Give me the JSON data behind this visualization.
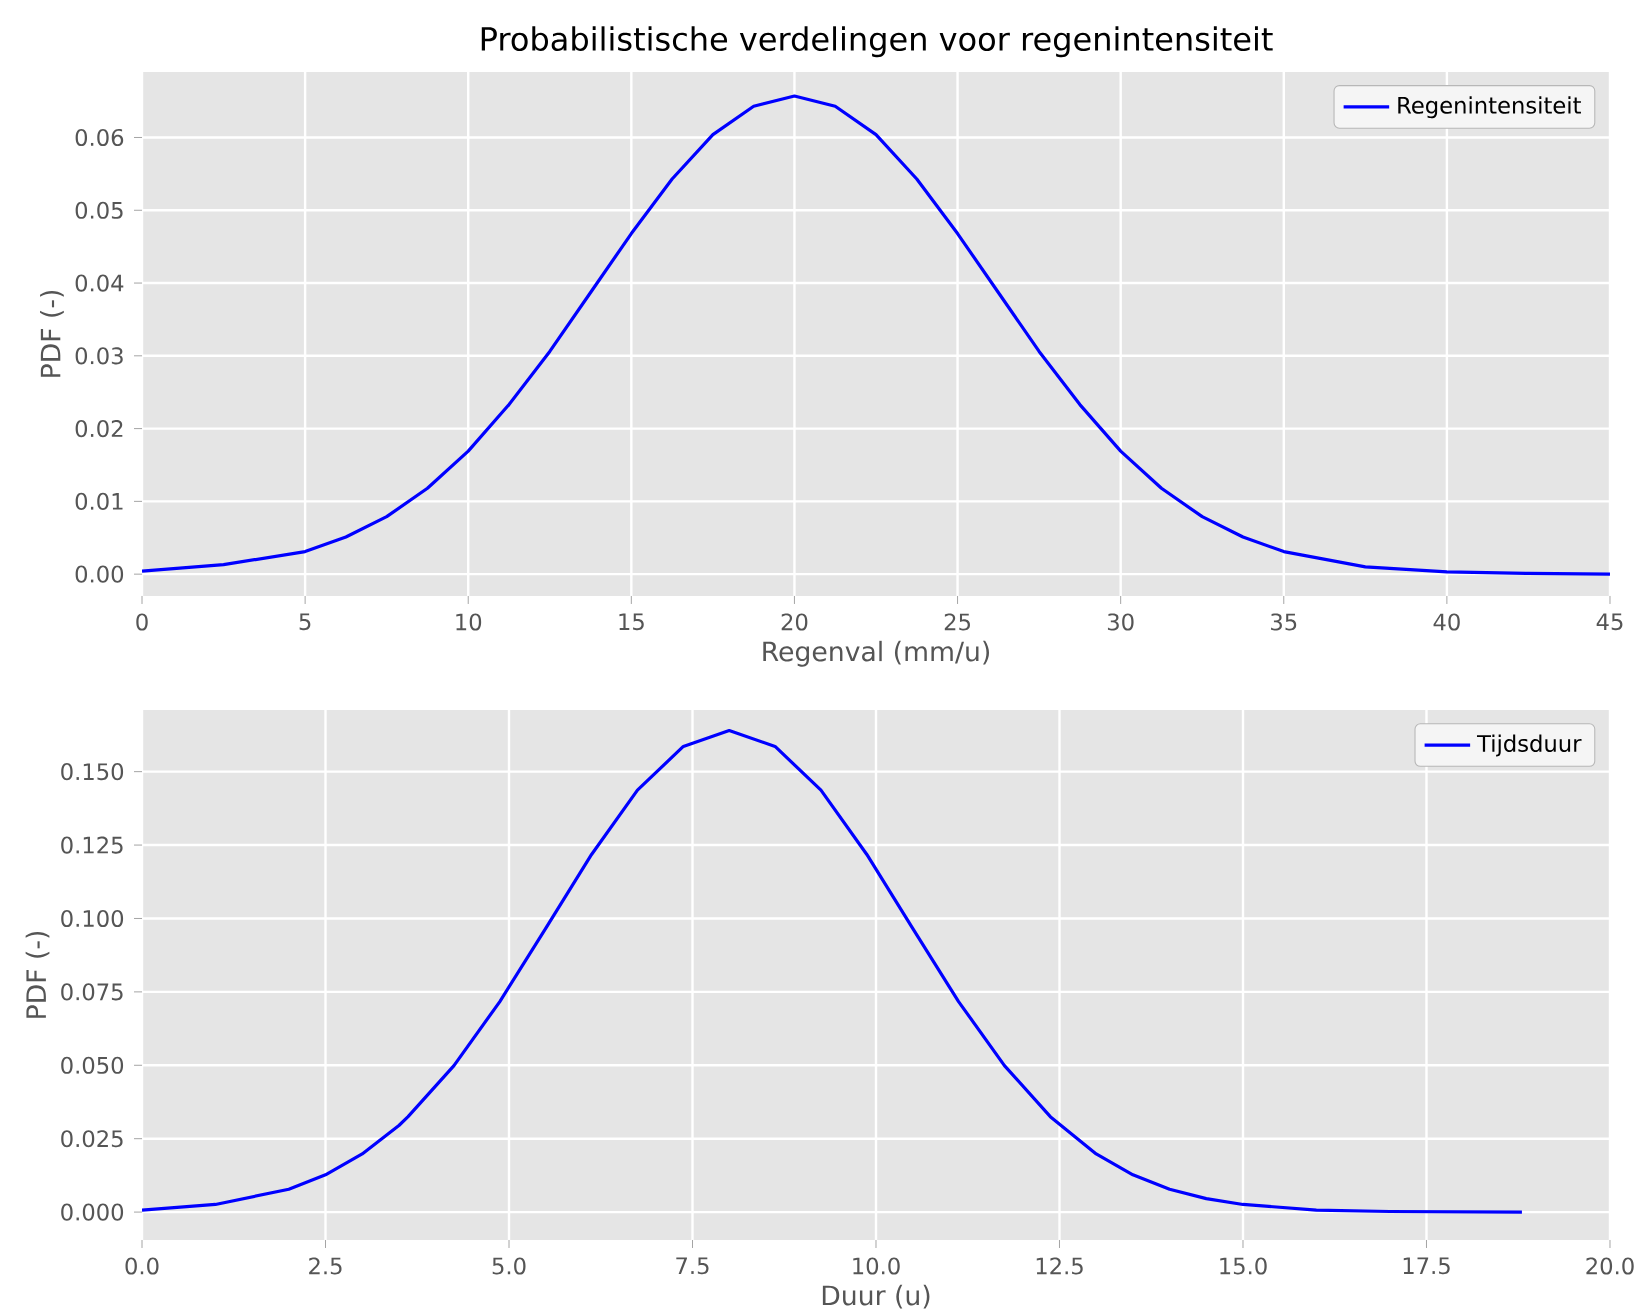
{
  "chart_data": [
    {
      "type": "line",
      "title": "Probabilistische verdelingen voor regenintensiteit",
      "xlabel": "Regenval (mm/u)",
      "ylabel": "PDF (-)",
      "x": [
        0,
        2.5,
        5,
        6.25,
        7.5,
        8.75,
        10,
        11.25,
        12.5,
        13.75,
        15,
        16.25,
        17.5,
        18.75,
        20,
        21.25,
        22.5,
        23.75,
        25,
        26.25,
        27.5,
        28.75,
        30,
        31.25,
        32.5,
        33.75,
        35,
        37.5,
        40,
        42.5,
        45
      ],
      "series": [
        {
          "name": "Regenintensiteit",
          "color": "#0000ff",
          "values": [
            0.0004,
            0.0013,
            0.0031,
            0.0051,
            0.0079,
            0.0118,
            0.0169,
            0.0233,
            0.0306,
            0.0387,
            0.0468,
            0.0543,
            0.0604,
            0.0643,
            0.0657,
            0.0643,
            0.0604,
            0.0543,
            0.0468,
            0.0387,
            0.0306,
            0.0233,
            0.0169,
            0.0118,
            0.0079,
            0.0051,
            0.0031,
            0.001,
            0.0003,
            0.0001,
            0.0
          ]
        }
      ],
      "xlim": [
        0,
        45
      ],
      "ylim": [
        -0.003,
        0.069
      ],
      "xticks": [
        0,
        5,
        10,
        15,
        20,
        25,
        30,
        35,
        40,
        45
      ],
      "yticks": [
        {
          "value": 0,
          "label": "0.00"
        },
        {
          "value": 0.01,
          "label": "0.01"
        },
        {
          "value": 0.02,
          "label": "0.02"
        },
        {
          "value": 0.03,
          "label": "0.03"
        },
        {
          "value": 0.04,
          "label": "0.04"
        },
        {
          "value": 0.05,
          "label": "0.05"
        },
        {
          "value": 0.06,
          "label": "0.06"
        }
      ],
      "grid": true,
      "legend": "top right"
    },
    {
      "type": "line",
      "xlabel": "Duur (u)",
      "ylabel": "PDF (-)",
      "x": [
        0,
        1,
        2,
        2.5,
        3,
        3.5,
        3.625,
        4.25,
        4.875,
        5.5,
        6.125,
        6.75,
        7.375,
        8,
        8.625,
        9.25,
        9.875,
        10.5,
        11.125,
        11.75,
        12.375,
        13,
        13.5,
        14,
        14.5,
        15,
        16,
        17,
        18.8
      ],
      "series": [
        {
          "name": "Tijdsduur",
          "color": "#0000ff",
          "values": [
            0.0007,
            0.0026,
            0.0078,
            0.0127,
            0.0198,
            0.0295,
            0.0325,
            0.0499,
            0.0717,
            0.0966,
            0.1218,
            0.1437,
            0.1586,
            0.164,
            0.1586,
            0.1437,
            0.1218,
            0.0966,
            0.0717,
            0.0499,
            0.0325,
            0.0198,
            0.0127,
            0.0078,
            0.0046,
            0.0026,
            0.0007,
            0.0002,
            0.0
          ]
        }
      ],
      "xlim": [
        0,
        20
      ],
      "ylim": [
        -0.0095,
        0.171
      ],
      "xticks": [
        {
          "value": 0,
          "label": "0.0"
        },
        {
          "value": 2.5,
          "label": "2.5"
        },
        {
          "value": 5,
          "label": "5.0"
        },
        {
          "value": 7.5,
          "label": "7.5"
        },
        {
          "value": 10,
          "label": "10.0"
        },
        {
          "value": 12.5,
          "label": "12.5"
        },
        {
          "value": 15,
          "label": "15.0"
        },
        {
          "value": 17.5,
          "label": "17.5"
        },
        {
          "value": 20,
          "label": "20.0"
        }
      ],
      "yticks": [
        {
          "value": 0,
          "label": "0.000"
        },
        {
          "value": 0.025,
          "label": "0.025"
        },
        {
          "value": 0.05,
          "label": "0.050"
        },
        {
          "value": 0.075,
          "label": "0.075"
        },
        {
          "value": 0.1,
          "label": "0.100"
        },
        {
          "value": 0.125,
          "label": "0.125"
        },
        {
          "value": 0.15,
          "label": "0.150"
        }
      ],
      "grid": true,
      "legend": "top right"
    }
  ]
}
